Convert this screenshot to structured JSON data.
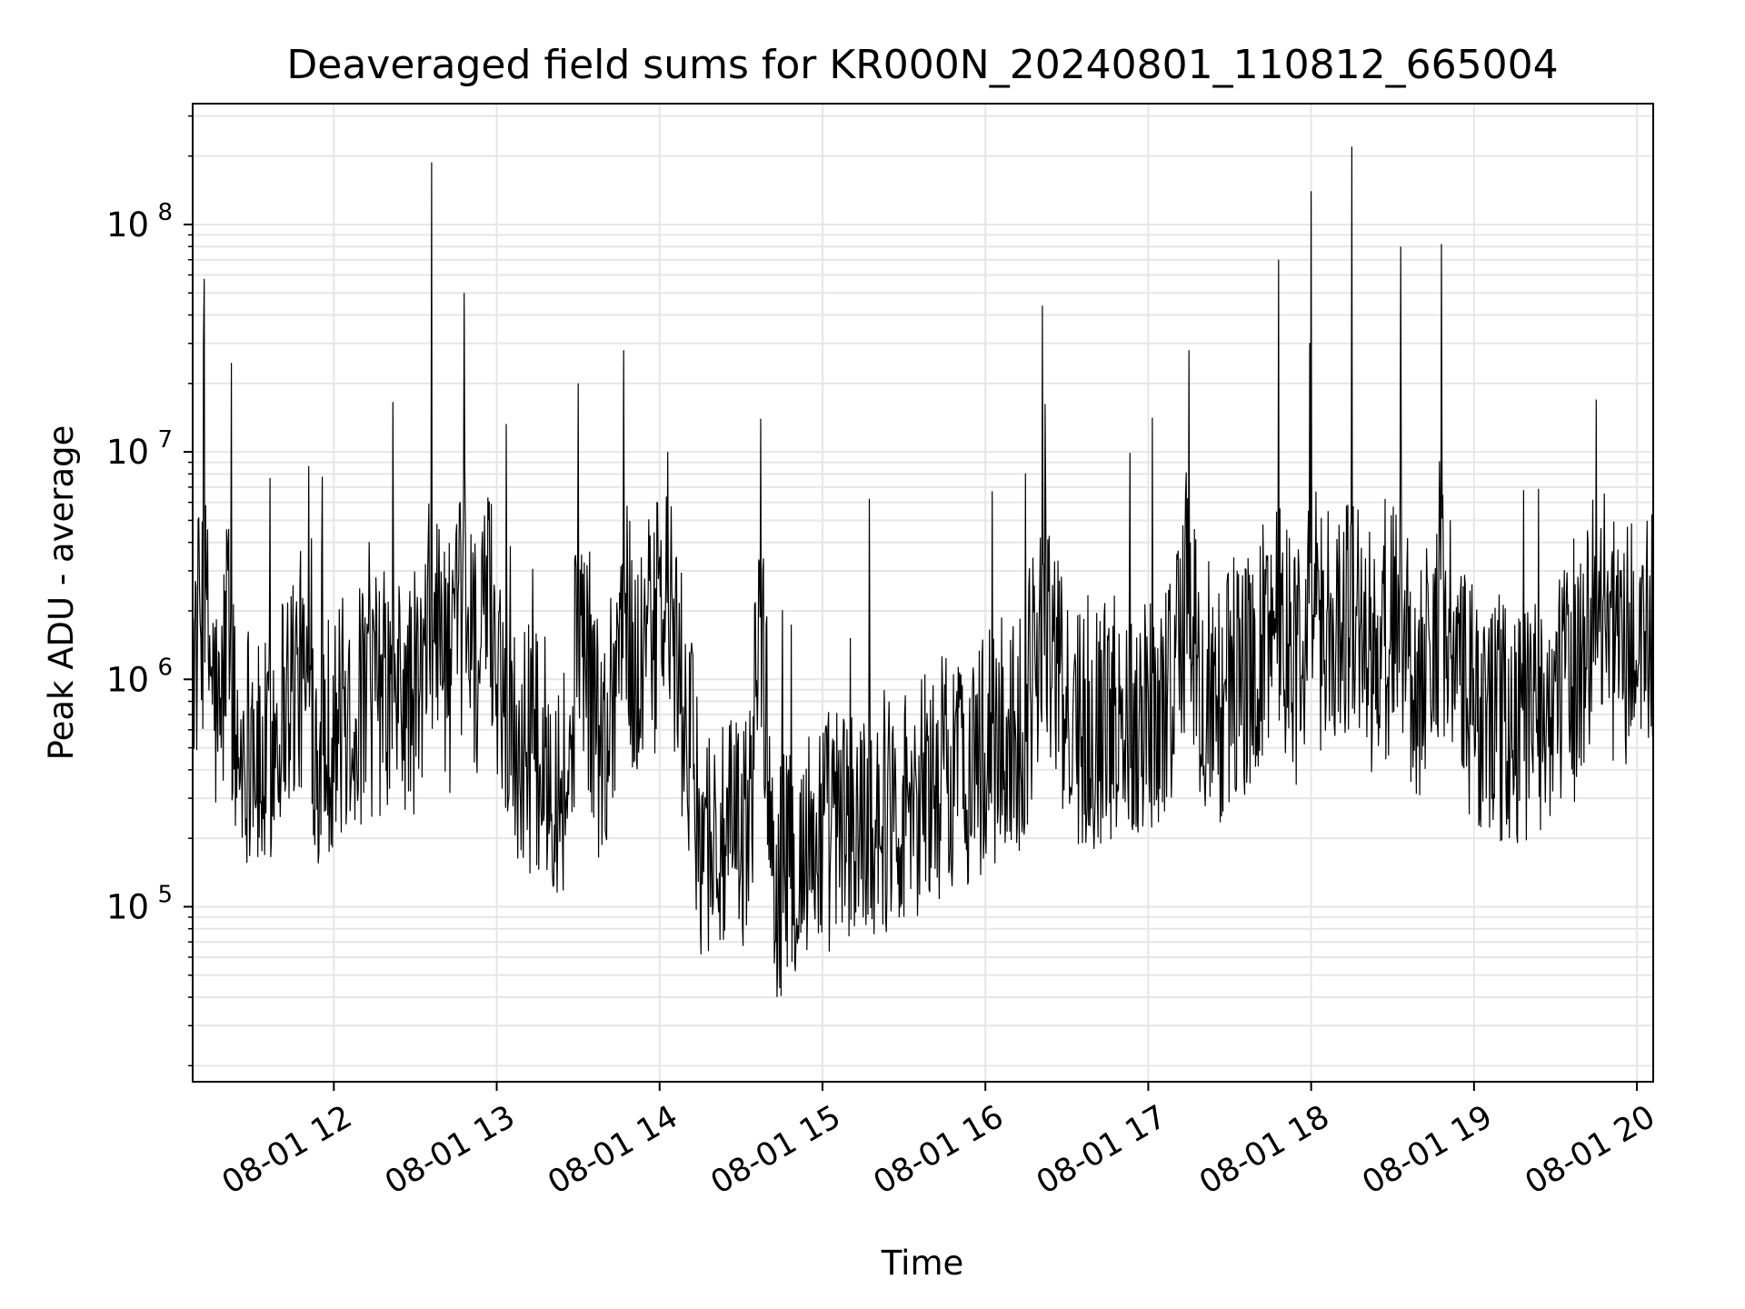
{
  "chart_data": {
    "type": "line",
    "title": "Deaveraged field sums for KR000N_20240801_110812_665004",
    "xlabel": "Time",
    "ylabel": "Peak ADU - average",
    "xscale": "time",
    "yscale": "log",
    "xlim": [
      "08-01 11:08",
      "08-01 20:06"
    ],
    "ylim": [
      17000,
      340000000
    ],
    "grid": true,
    "legend": "none",
    "line_color": "#000000",
    "x_ticks": [
      "08-01 12",
      "08-01 13",
      "08-01 14",
      "08-01 15",
      "08-01 16",
      "08-01 17",
      "08-01 18",
      "08-01 19",
      "08-01 20"
    ],
    "x_tick_hours": [
      12,
      13,
      14,
      15,
      16,
      17,
      18,
      19,
      20
    ],
    "y_ticks": [
      {
        "base": "10",
        "exp": "5",
        "value": 100000
      },
      {
        "base": "10",
        "exp": "6",
        "value": 1000000
      },
      {
        "base": "10",
        "exp": "7",
        "value": 10000000
      },
      {
        "base": "10",
        "exp": "8",
        "value": 100000000
      }
    ],
    "series": [
      {
        "time_hours_of_day": [
          11.15,
          11.2,
          11.3,
          11.35,
          11.4,
          11.5,
          11.55,
          11.7,
          11.8,
          11.9,
          12.0,
          12.2,
          12.3,
          12.45,
          12.55,
          12.6,
          12.72,
          12.8,
          12.9,
          12.95,
          13.1,
          13.3,
          13.45,
          13.5,
          13.65,
          13.78,
          13.85,
          14.05,
          14.25,
          14.4,
          14.55,
          14.62,
          14.7,
          14.85,
          15.0,
          15.2,
          15.35,
          15.5,
          15.65,
          15.8,
          15.95,
          16.1,
          16.25,
          16.35,
          16.5,
          16.65,
          16.8,
          16.95,
          17.1,
          17.25,
          17.35,
          17.55,
          17.65,
          17.8,
          17.9,
          18.0,
          18.1,
          18.25,
          18.4,
          18.55,
          18.65,
          18.8,
          18.95,
          19.1,
          19.3,
          19.45,
          19.6,
          19.75,
          19.9,
          20.05
        ],
        "values": [
          1500000,
          30000000,
          600000,
          3000000,
          500000,
          700000,
          400000,
          1000000,
          1200000,
          600000,
          700000,
          900000,
          1000000,
          900000,
          1100000,
          30000000,
          1200000,
          50000000,
          1300000,
          5000000,
          600000,
          500000,
          400000,
          20000000,
          500000,
          28000000,
          1200000,
          10000000,
          250000,
          200000,
          250000,
          14000000,
          150000,
          180000,
          250000,
          250000,
          300000,
          320000,
          400000,
          450000,
          500000,
          600000,
          700000,
          44000000,
          700000,
          700000,
          800000,
          800000,
          900000,
          28000000,
          700000,
          1200000,
          1200000,
          70000000,
          1300000,
          140000000,
          1500000,
          220000000,
          1200000,
          80000000,
          1000000,
          82000000,
          900000,
          800000,
          700000,
          900000,
          1000000,
          17000000,
          1500000,
          1800000
        ]
      }
    ]
  }
}
